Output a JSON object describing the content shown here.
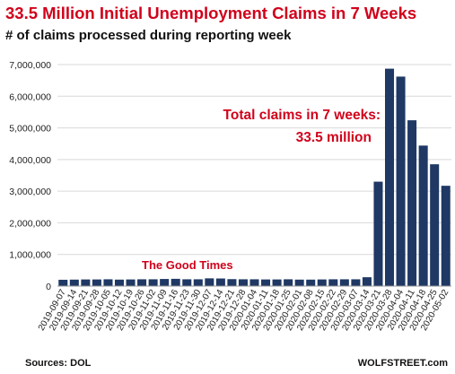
{
  "header": {
    "title": "33.5 Million Initial Unemployment Claims in 7 Weeks",
    "subtitle": "# of claims processed during reporting week"
  },
  "footer": {
    "source": "Sources: DOL",
    "brand": "WOLFSTREET.com"
  },
  "colors": {
    "bar": "#1f3864",
    "accent": "#d0021b",
    "grid": "#d9d9d9"
  },
  "chart_data": {
    "type": "bar",
    "title": "33.5 Million Initial Unemployment Claims in 7 Weeks",
    "subtitle": "# of claims processed during reporting week",
    "xlabel": "",
    "ylabel": "",
    "ylim": [
      0,
      7000000
    ],
    "yticks": [
      0,
      1000000,
      2000000,
      3000000,
      4000000,
      5000000,
      6000000,
      7000000
    ],
    "ytick_labels": [
      "0",
      "1,000,000",
      "2,000,000",
      "3,000,000",
      "4,000,000",
      "5,000,000",
      "6,000,000",
      "7,000,000"
    ],
    "grid": true,
    "categories": [
      "2019-09-07",
      "2019-09-14",
      "2019-09-21",
      "2019-09-28",
      "2019-10-05",
      "2019-10-12",
      "2019-10-19",
      "2019-10-26",
      "2019-11-02",
      "2019-11-09",
      "2019-11-16",
      "2019-11-23",
      "2019-11-30",
      "2019-12-07",
      "2019-12-14",
      "2019-12-21",
      "2019-12-28",
      "2020-01-04",
      "2020-01-11",
      "2020-01-18",
      "2020-01-25",
      "2020-02-01",
      "2020-02-08",
      "2020-02-15",
      "2020-02-22",
      "2020-02-29",
      "2020-03-07",
      "2020-03-14",
      "2020-03-21",
      "2020-03-28",
      "2020-04-04",
      "2020-04-11",
      "2020-04-18",
      "2020-04-25",
      "2020-05-02"
    ],
    "values": [
      200000,
      205000,
      210000,
      210000,
      215000,
      205000,
      210000,
      215000,
      215000,
      225000,
      230000,
      215000,
      215000,
      245000,
      240000,
      220000,
      215000,
      215000,
      210000,
      210000,
      215000,
      205000,
      205000,
      210000,
      215000,
      215000,
      215000,
      280000,
      3300000,
      6870000,
      6620000,
      5240000,
      4440000,
      3850000,
      3170000
    ],
    "annotations": [
      {
        "text": "Total claims in 7 weeks:",
        "color": "#d0021b"
      },
      {
        "text": "33.5 million",
        "color": "#d0021b"
      },
      {
        "text": "The Good Times",
        "color": "#d0021b"
      }
    ]
  }
}
